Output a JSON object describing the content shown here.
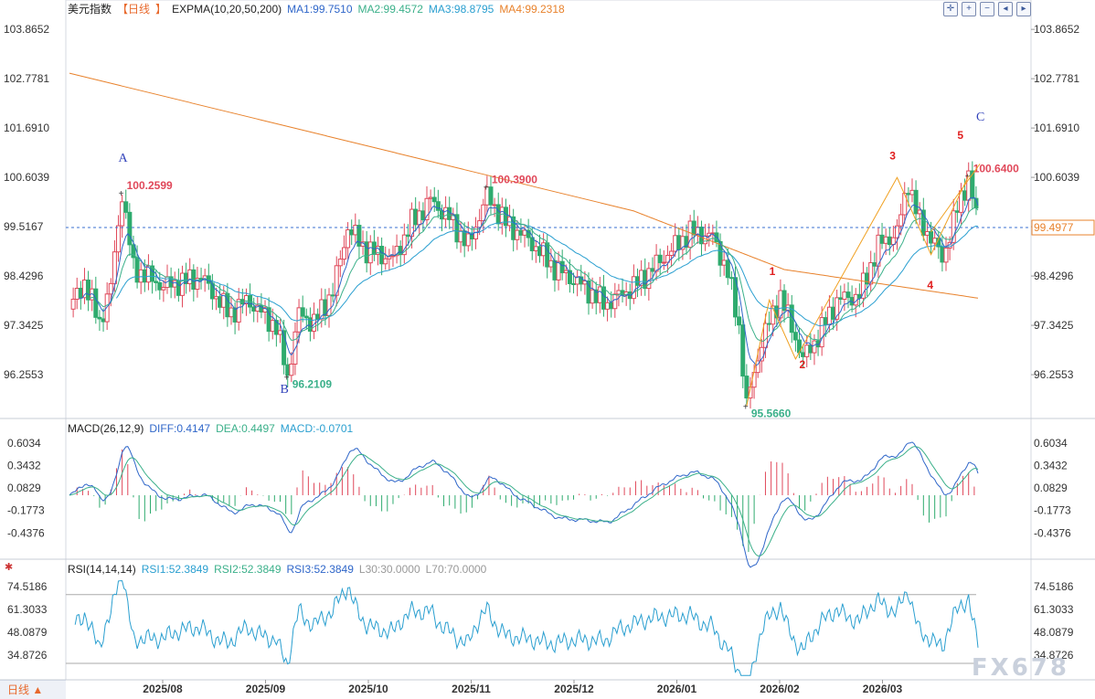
{
  "chart_data": {
    "type": "candlestick",
    "title": "美元指数",
    "period_label": "日线",
    "price_axis": [
      "103.8652",
      "102.7781",
      "101.6910",
      "100.6039",
      "99.5167",
      "98.4296",
      "97.3425",
      "96.2553"
    ],
    "price_range": [
      95.35,
      104.15
    ],
    "current_price": "99.4977",
    "current_price_value": 99.4977,
    "x_labels": [
      "2025/08",
      "2025/09",
      "2025/10",
      "2025/11",
      "2025/12",
      "2026/01",
      "2026/02",
      "2026/03"
    ],
    "indicator": {
      "name": "EXPMA(10,20,50,200)",
      "ma1": "MA1:99.7510",
      "ma2": "MA2:99.4572",
      "ma3": "MA3:98.8795",
      "ma4": "MA4:99.2318",
      "colors": {
        "ma1": "#2f66c9",
        "ma2": "#3bb08a",
        "ma3": "#2a9fd0",
        "ma4": "#e8822c"
      }
    },
    "annotations": [
      {
        "text": "A",
        "color": "#3344bb",
        "x": "2025/07 late",
        "y": 100.95
      },
      {
        "text": "B",
        "color": "#3344bb",
        "x": "2025/09 mid",
        "y": 95.85
      },
      {
        "text": "C",
        "color": "#3344bb",
        "x": "2026/03 end",
        "y": 101.85
      },
      {
        "text": "1",
        "color": "#e02020",
        "x": "2026/01 late",
        "y": 98.45
      },
      {
        "text": "2",
        "color": "#e02020",
        "x": "2026/02 early",
        "y": 96.4
      },
      {
        "text": "3",
        "color": "#e02020",
        "x": "2026/03 early",
        "y": 101.0
      },
      {
        "text": "4",
        "color": "#e02020",
        "x": "2026/03 mid",
        "y": 98.15
      },
      {
        "text": "5",
        "color": "#e02020",
        "x": "2026/03 end",
        "y": 101.45
      }
    ],
    "extremes": [
      {
        "label": "100.2599",
        "color": "#e0485a",
        "y": 100.26
      },
      {
        "label": "96.2109",
        "color": "#3bb08a",
        "y": 96.21
      },
      {
        "label": "100.3900",
        "color": "#e0485a",
        "y": 100.39
      },
      {
        "label": "95.5660",
        "color": "#3bb08a",
        "y": 95.566
      },
      {
        "label": "100.6400",
        "color": "#e0485a",
        "y": 100.64
      }
    ],
    "macd": {
      "name": "MACD(26,12,9)",
      "diff": "DIFF:0.4147",
      "dea": "DEA:0.4497",
      "hist": "MACD:-0.0701",
      "axis": [
        "0.6034",
        "0.3432",
        "0.0829",
        "-0.1773",
        "-0.4376"
      ],
      "range": [
        -0.72,
        0.72
      ],
      "colors": {
        "diff": "#2f66c9",
        "dea": "#3bb08a",
        "hist": "#e8822c"
      }
    },
    "rsi": {
      "name": "RSI(14,14,14)",
      "rsi1": "RSI1:52.3849",
      "rsi2": "RSI2:52.3849",
      "rsi3": "RSI3:52.3849",
      "l30": "L30:30.0000",
      "l70": "L70:70.0000",
      "axis": [
        "74.5186",
        "61.3033",
        "48.0879",
        "34.8726"
      ],
      "range": [
        21.5,
        81
      ],
      "colors": {
        "rsi1": "#2a9fd0",
        "rsi2": "#3bb08a",
        "rsi3": "#2f66c9",
        "levels": "#999999"
      }
    },
    "up_color": "#e0485a",
    "down_color": "#2eab6e"
  },
  "watermark": "FX678",
  "period_tab": "日线 ▲"
}
